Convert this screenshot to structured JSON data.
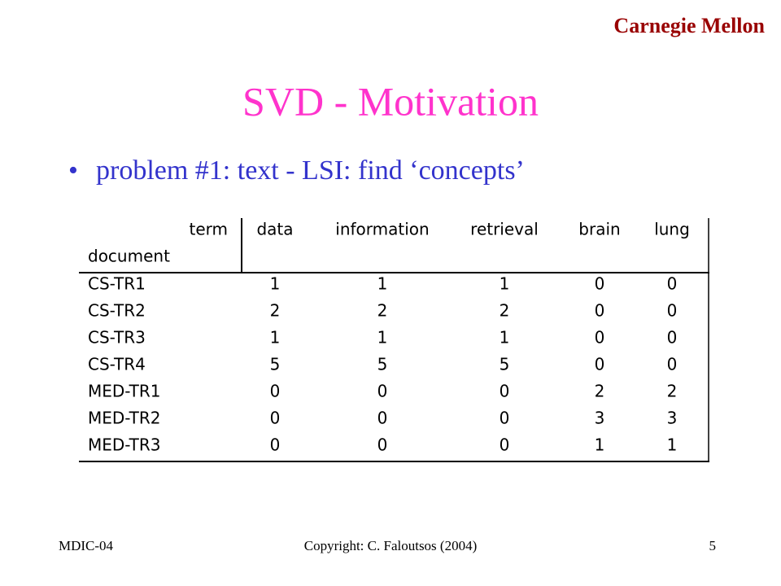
{
  "header": {
    "institution": "Carnegie Mellon",
    "title": "SVD - Motivation"
  },
  "bullets": [
    "problem #1: text - LSI: find ‘concepts’"
  ],
  "table": {
    "corner_top": "term",
    "corner_bottom": "document",
    "columns": [
      "data",
      "information",
      "retrieval",
      "brain",
      "lung"
    ],
    "rows": [
      [
        "CS-TR1",
        1,
        1,
        1,
        0,
        0
      ],
      [
        "CS-TR2",
        2,
        2,
        2,
        0,
        0
      ],
      [
        "CS-TR3",
        1,
        1,
        1,
        0,
        0
      ],
      [
        "CS-TR4",
        5,
        5,
        5,
        0,
        0
      ],
      [
        "MED-TR1",
        0,
        0,
        0,
        2,
        2
      ],
      [
        "MED-TR2",
        0,
        0,
        0,
        3,
        3
      ],
      [
        "MED-TR3",
        0,
        0,
        0,
        1,
        1
      ]
    ]
  },
  "footer": {
    "left": "MDIC-04",
    "center": "Copyright:  C. Faloutsos (2004)",
    "right": "5"
  }
}
